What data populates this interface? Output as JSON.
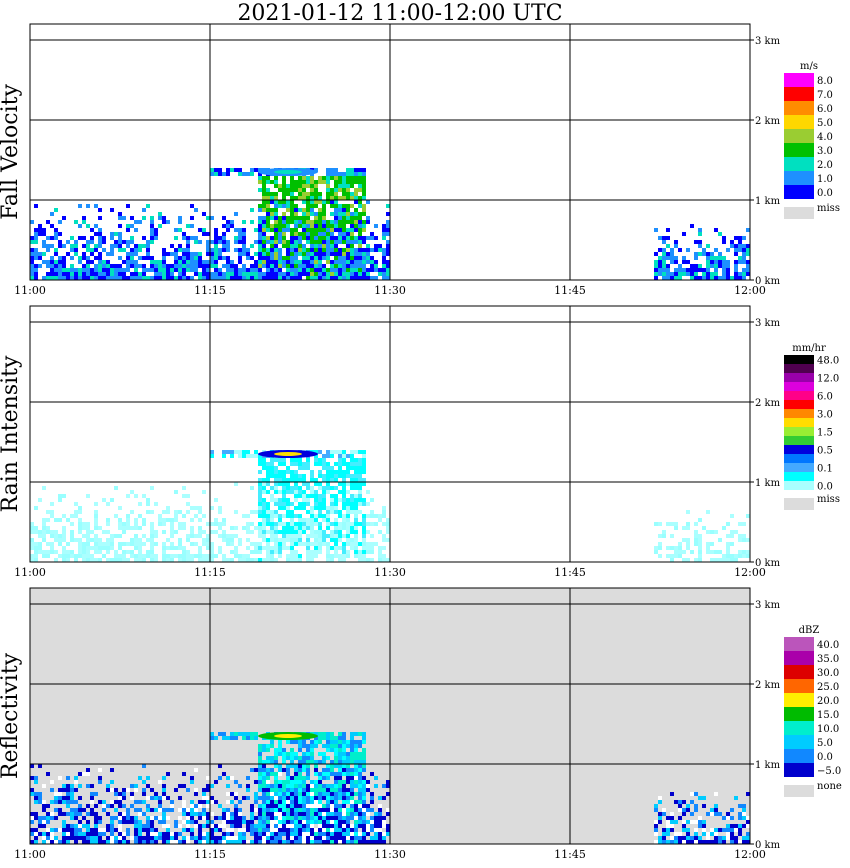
{
  "title": "2021-01-12   11:00-12:00 UTC",
  "x_ticks": [
    "11:00",
    "11:15",
    "11:30",
    "11:45",
    "12:00"
  ],
  "height_ticks": [
    "0 km",
    "1 km",
    "2 km",
    "3 km"
  ],
  "colors": {
    "missing": "#dcdcdc",
    "grid": "#000000"
  },
  "panels": [
    {
      "id": "fall-velocity",
      "ylabel": "Fall Velocity",
      "unit": "m/s",
      "background": "#ffffff",
      "legend": [
        {
          "label": "8.0",
          "color": "#ff00ff"
        },
        {
          "label": "7.0",
          "color": "#ff0000"
        },
        {
          "label": "6.0",
          "color": "#ff8c00"
        },
        {
          "label": "5.0",
          "color": "#ffd700"
        },
        {
          "label": "4.0",
          "color": "#9acd32"
        },
        {
          "label": "3.0",
          "color": "#00c000"
        },
        {
          "label": "2.0",
          "color": "#00e0c0"
        },
        {
          "label": "1.0",
          "color": "#1e90ff"
        },
        {
          "label": "0.0",
          "color": "#0000ff"
        }
      ],
      "missing_label": "miss"
    },
    {
      "id": "rain-intensity",
      "ylabel": "Rain Intensity",
      "unit": "mm/hr",
      "background": "#ffffff",
      "legend": [
        {
          "label": "48.0",
          "color": "#000000"
        },
        {
          "label": "",
          "color": "#500050"
        },
        {
          "label": "12.0",
          "color": "#9900aa"
        },
        {
          "label": "",
          "color": "#dd00dd"
        },
        {
          "label": "6.0",
          "color": "#ff0088"
        },
        {
          "label": "",
          "color": "#ff0000"
        },
        {
          "label": "3.0",
          "color": "#ff8800"
        },
        {
          "label": "",
          "color": "#ffdd00"
        },
        {
          "label": "1.5",
          "color": "#99ee33"
        },
        {
          "label": "",
          "color": "#33cc33"
        },
        {
          "label": "0.5",
          "color": "#0000dd"
        },
        {
          "label": "",
          "color": "#0077ff"
        },
        {
          "label": "0.1",
          "color": "#44aaff"
        },
        {
          "label": "",
          "color": "#00ffff"
        },
        {
          "label": "0.0",
          "color": "#aaffff"
        }
      ],
      "missing_label": "miss"
    },
    {
      "id": "reflectivity",
      "ylabel": "Reflectivity",
      "unit": "dBZ",
      "background": "#dcdcdc",
      "legend": [
        {
          "label": "40.0",
          "color": "#bb55bb"
        },
        {
          "label": "35.0",
          "color": "#aa00aa"
        },
        {
          "label": "30.0",
          "color": "#dd0000"
        },
        {
          "label": "25.0",
          "color": "#ff6600"
        },
        {
          "label": "20.0",
          "color": "#ffee00"
        },
        {
          "label": "15.0",
          "color": "#00bb00"
        },
        {
          "label": "10.0",
          "color": "#00eecc"
        },
        {
          "label": "5.0",
          "color": "#00ccff"
        },
        {
          "label": "0.0",
          "color": "#1188ff"
        },
        {
          "label": "−5.0",
          "color": "#0000cc"
        }
      ],
      "missing_label": "none"
    }
  ],
  "chart_data": {
    "type": "heatmap",
    "title": "2021-01-12   11:00-12:00 UTC",
    "x": [
      "11:00",
      "11:15",
      "11:30",
      "11:45",
      "12:00"
    ],
    "xlim": [
      "11:00",
      "12:00"
    ],
    "ylim_km": [
      0,
      3.5
    ],
    "y_ticks_km": [
      0,
      1,
      2,
      3
    ],
    "grid": true,
    "legend_placement": "right",
    "series": [
      {
        "name": "Fall Velocity",
        "unit": "m/s",
        "scale": [
          0.0,
          1.0,
          2.0,
          3.0,
          4.0,
          5.0,
          6.0,
          7.0,
          8.0
        ]
      },
      {
        "name": "Rain Intensity",
        "unit": "mm/hr",
        "scale": [
          0.0,
          0.1,
          0.5,
          1.5,
          3.0,
          6.0,
          12.0,
          48.0
        ]
      },
      {
        "name": "Reflectivity",
        "unit": "dBZ",
        "scale": [
          -5.0,
          0.0,
          5.0,
          10.0,
          15.0,
          20.0,
          25.0,
          30.0,
          35.0,
          40.0
        ]
      }
    ],
    "features": [
      {
        "description": "melting layer / bright band",
        "time": [
          "11:15",
          "11:28"
        ],
        "height_km": [
          1.3,
          1.4
        ]
      },
      {
        "description": "precipitation shaft",
        "time": [
          "11:19",
          "11:28"
        ],
        "height_km": [
          0,
          1.3
        ]
      },
      {
        "description": "low-level echoes",
        "time": [
          "11:00",
          "11:30"
        ],
        "height_km": [
          0,
          1.0
        ]
      },
      {
        "description": "low-level echoes",
        "time": [
          "11:52",
          "12:00"
        ],
        "height_km": [
          0,
          0.7
        ]
      }
    ]
  }
}
